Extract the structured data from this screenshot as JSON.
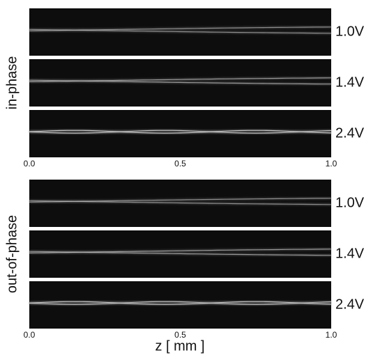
{
  "figure": {
    "groups": [
      {
        "label": "in-phase",
        "panels": [
          "1.0V",
          "1.4V",
          "2.4V"
        ],
        "ticks": [
          "0.0",
          "0.5",
          "1.0"
        ]
      },
      {
        "label": "out-of-phase",
        "panels": [
          "1.0V",
          "1.4V",
          "2.4V"
        ],
        "ticks": [
          "0.0",
          "0.5",
          "1.0"
        ]
      }
    ],
    "x_label": "z [ mm ]"
  }
}
